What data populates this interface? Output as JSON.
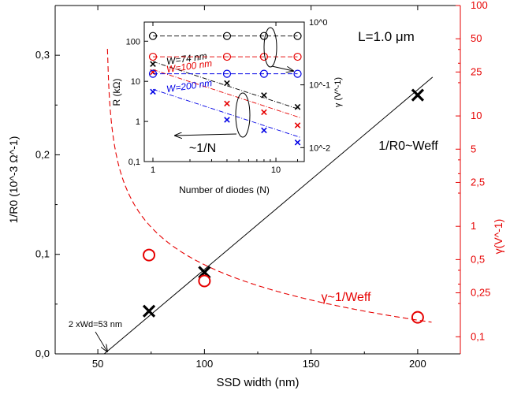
{
  "chart_data": [
    {
      "type": "scatter",
      "xlabel": "SSD width (nm)",
      "ylabel_left": "1/R0 (10^-3 Ω^-1)",
      "ylabel_right": "γ(V^-1)",
      "xlim": [
        30,
        220
      ],
      "ylim_left": [
        0,
        0.35
      ],
      "ylim_right": [
        0.07,
        100
      ],
      "y_right_scale": "log",
      "x_ticks": [
        "50",
        "100",
        "150",
        "200"
      ],
      "y_left_ticks": [
        "0,0",
        "0,1",
        "0,2",
        "0,3"
      ],
      "y_right_ticks": [
        "0,1",
        "0,25",
        "0,5",
        "1",
        "2,5",
        "5",
        "10",
        "25",
        "50",
        "100"
      ],
      "series": [
        {
          "name": "1/R0",
          "axis": "left",
          "marker": "x",
          "color": "#000000",
          "x": [
            74,
            100,
            200
          ],
          "y": [
            0.043,
            0.082,
            0.26
          ]
        },
        {
          "name": "γ",
          "axis": "right",
          "marker": "circle",
          "color": "#e60000",
          "x": [
            74,
            100,
            200
          ],
          "y": [
            0.55,
            0.32,
            0.15
          ]
        }
      ],
      "fit_line": {
        "name": "1/R0~Weff",
        "x": [
          53,
          207
        ],
        "y": [
          0,
          0.278
        ]
      },
      "fit_curve": {
        "name": "γ~1/Weff",
        "x_start": 54,
        "x_end": 207,
        "y_end": 0.135
      },
      "annotations": {
        "label_L": "L=1.0 μm",
        "label_wd": "2 xWd=53 nm",
        "label_fit": "1/R0~Weff",
        "label_gamma": "γ~1/Weff"
      }
    },
    {
      "type": "scatter",
      "xlabel": "Number of diodes (N)",
      "ylabel_left": "R (kΩ)",
      "ylabel_right": "γ (V^-1)",
      "xlim": [
        0.85,
        17
      ],
      "ylim_left": [
        0.1,
        300
      ],
      "ylim_right": [
        0.006,
        1
      ],
      "x_scale": "log",
      "y_scale": "log",
      "x_ticks": [
        "1",
        "10"
      ],
      "y_left_ticks": [
        "0,1",
        "1",
        "10",
        "100"
      ],
      "y_right_ticks": [
        "10^-2",
        "10^-1",
        "10^0"
      ],
      "n": [
        1,
        4,
        8,
        15
      ],
      "series": [
        {
          "name": "W=74 nm",
          "color": "#000000",
          "R": [
            27,
            9,
            4.5,
            2.3
          ],
          "gamma": [
            0.6,
            0.6,
            0.6,
            0.6
          ]
        },
        {
          "name": "W=100 nm",
          "color": "#e60000",
          "R": [
            17,
            2.8,
            1.7,
            0.8
          ],
          "gamma": [
            0.28,
            0.28,
            0.28,
            0.28
          ]
        },
        {
          "name": "W=200 nm",
          "color": "#0000e6",
          "R": [
            5.5,
            1.1,
            0.6,
            0.3
          ],
          "gamma": [
            0.15,
            0.15,
            0.15,
            0.15
          ]
        }
      ],
      "annotations": {
        "scaling": "~1/N"
      }
    }
  ]
}
